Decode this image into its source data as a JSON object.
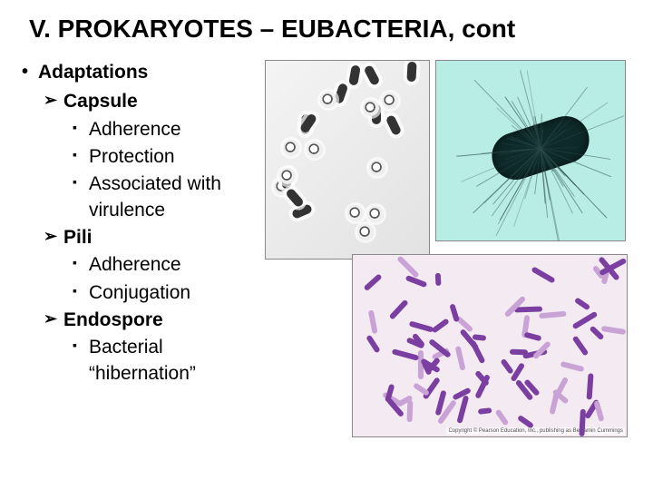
{
  "title": "V.  PROKARYOTES – EUBACTERIA, cont",
  "outline": {
    "heading": "Adaptations",
    "groups": [
      {
        "label": "Capsule",
        "items": [
          "Adherence",
          "Protection",
          "Associated with virulence"
        ]
      },
      {
        "label": "Pili",
        "items": [
          "Adherence",
          "Conjugation"
        ]
      },
      {
        "label": "Endospore",
        "items": [
          "Bacterial “hibernation”"
        ]
      }
    ]
  },
  "bullets": {
    "lvl1": "•",
    "lvl2": "➢",
    "lvl3": "▪"
  },
  "images": {
    "capsule": {
      "bg": "#ececec",
      "dot_count": 22
    },
    "pili": {
      "bg": "#b8ede6",
      "cell_color": "#0e2a2a",
      "pili_count": 60
    },
    "endospore": {
      "bg": "#f4eaf2",
      "rod_color": "#7a3fa0",
      "rod_count": 70,
      "copyright": "Copyright © Pearson Education, Inc., publishing as Benjamin Cummings"
    }
  },
  "typography": {
    "title_fontsize": 28,
    "body_fontsize": 21,
    "title_weight": "bold",
    "font_family": "Arial"
  },
  "colors": {
    "text": "#000000",
    "background": "#ffffff"
  }
}
